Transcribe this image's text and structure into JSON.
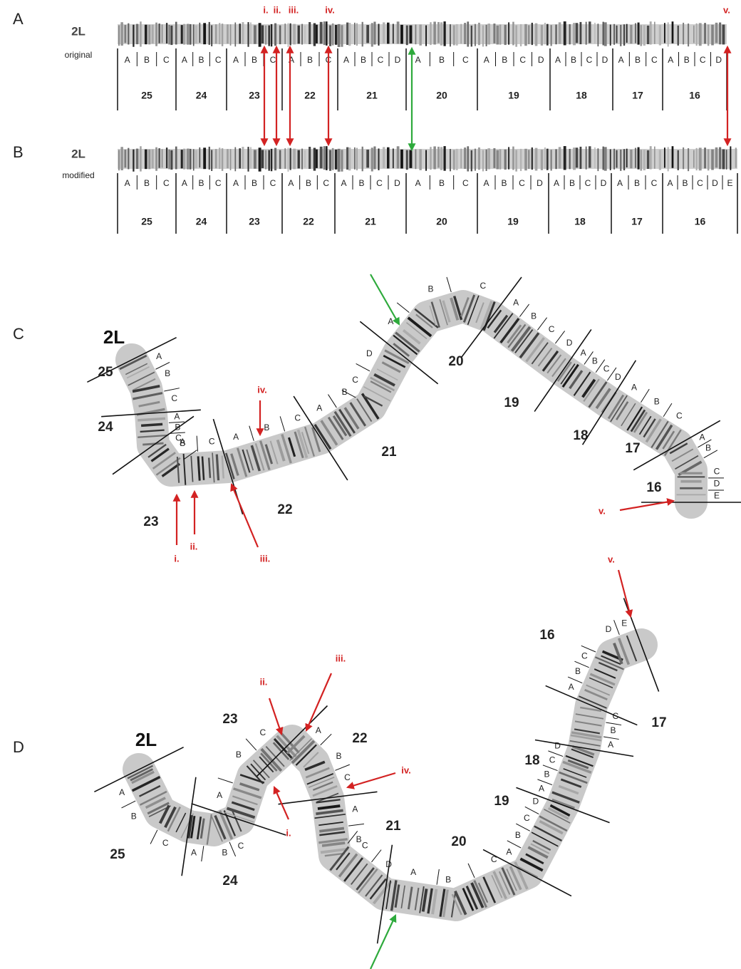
{
  "panels": [
    {
      "letter": "A",
      "chromosome": "2L",
      "caption": "original",
      "arrows": [
        "i.",
        "ii.",
        "iii.",
        "iv.",
        "v."
      ],
      "divisions": [
        {
          "number": "25",
          "bands": [
            "A",
            "B",
            "C"
          ]
        },
        {
          "number": "24",
          "bands": [
            "A",
            "B",
            "C"
          ]
        },
        {
          "number": "23",
          "bands": [
            "A",
            "B",
            "C"
          ]
        },
        {
          "number": "22",
          "bands": [
            "A",
            "B",
            "C"
          ]
        },
        {
          "number": "21",
          "bands": [
            "A",
            "B",
            "C",
            "D"
          ]
        },
        {
          "number": "20",
          "bands": [
            "A",
            "B",
            "C"
          ]
        },
        {
          "number": "19",
          "bands": [
            "A",
            "B",
            "C",
            "D"
          ]
        },
        {
          "number": "18",
          "bands": [
            "A",
            "B",
            "C",
            "D"
          ]
        },
        {
          "number": "17",
          "bands": [
            "A",
            "B",
            "C"
          ]
        },
        {
          "number": "16",
          "bands": [
            "A",
            "B",
            "C",
            "D"
          ]
        }
      ]
    },
    {
      "letter": "B",
      "chromosome": "2L",
      "caption": "modified",
      "divisions": [
        {
          "number": "25",
          "bands": [
            "A",
            "B",
            "C"
          ]
        },
        {
          "number": "24",
          "bands": [
            "A",
            "B",
            "C"
          ]
        },
        {
          "number": "23",
          "bands": [
            "A",
            "B",
            "C"
          ]
        },
        {
          "number": "22",
          "bands": [
            "A",
            "B",
            "C"
          ]
        },
        {
          "number": "21",
          "bands": [
            "A",
            "B",
            "C",
            "D"
          ]
        },
        {
          "number": "20",
          "bands": [
            "A",
            "B",
            "C"
          ]
        },
        {
          "number": "19",
          "bands": [
            "A",
            "B",
            "C",
            "D"
          ]
        },
        {
          "number": "18",
          "bands": [
            "A",
            "B",
            "C",
            "D"
          ]
        },
        {
          "number": "17",
          "bands": [
            "A",
            "B",
            "C"
          ]
        },
        {
          "number": "16",
          "bands": [
            "A",
            "B",
            "C",
            "D",
            "E"
          ]
        }
      ]
    },
    {
      "letter": "C",
      "chromosome": "2L",
      "arrows": [
        "i.",
        "ii.",
        "iii.",
        "iv.",
        "v."
      ],
      "divisions": [
        {
          "number": "25",
          "bands": [
            "A",
            "B",
            "C"
          ]
        },
        {
          "number": "24",
          "bands": [
            "A",
            "B",
            "C"
          ]
        },
        {
          "number": "23",
          "bands": [
            "A",
            "B",
            "C"
          ]
        },
        {
          "number": "22",
          "bands": [
            "A",
            "B",
            "C"
          ]
        },
        {
          "number": "21",
          "bands": [
            "A",
            "B",
            "C",
            "D"
          ]
        },
        {
          "number": "20",
          "bands": [
            "A",
            "B",
            "C"
          ]
        },
        {
          "number": "19",
          "bands": [
            "A",
            "B",
            "C",
            "D"
          ]
        },
        {
          "number": "18",
          "bands": [
            "A",
            "B",
            "C",
            "D"
          ]
        },
        {
          "number": "17",
          "bands": [
            "A",
            "B",
            "C"
          ]
        },
        {
          "number": "16",
          "bands": [
            "A",
            "B",
            "C",
            "D",
            "E"
          ]
        }
      ]
    },
    {
      "letter": "D",
      "chromosome": "2L",
      "arrows": [
        "i.",
        "ii.",
        "iii.",
        "iv.",
        "v."
      ],
      "divisions": [
        {
          "number": "25",
          "bands": [
            "A",
            "B",
            "C"
          ]
        },
        {
          "number": "24",
          "bands": [
            "A",
            "B",
            "C"
          ]
        },
        {
          "number": "23",
          "bands": [
            "A",
            "B",
            "C"
          ]
        },
        {
          "number": "22",
          "bands": [
            "A",
            "B",
            "C"
          ]
        },
        {
          "number": "21",
          "bands": [
            "A",
            "B",
            "C",
            "D"
          ]
        },
        {
          "number": "20",
          "bands": [
            "A",
            "B",
            "C"
          ]
        },
        {
          "number": "19",
          "bands": [
            "A",
            "B",
            "C",
            "D"
          ]
        },
        {
          "number": "18",
          "bands": [
            "A",
            "B",
            "C",
            "D"
          ]
        },
        {
          "number": "17",
          "bands": [
            "A",
            "B",
            "C"
          ]
        },
        {
          "number": "16",
          "bands": [
            "A",
            "B",
            "C",
            "D",
            "E"
          ]
        }
      ]
    }
  ]
}
